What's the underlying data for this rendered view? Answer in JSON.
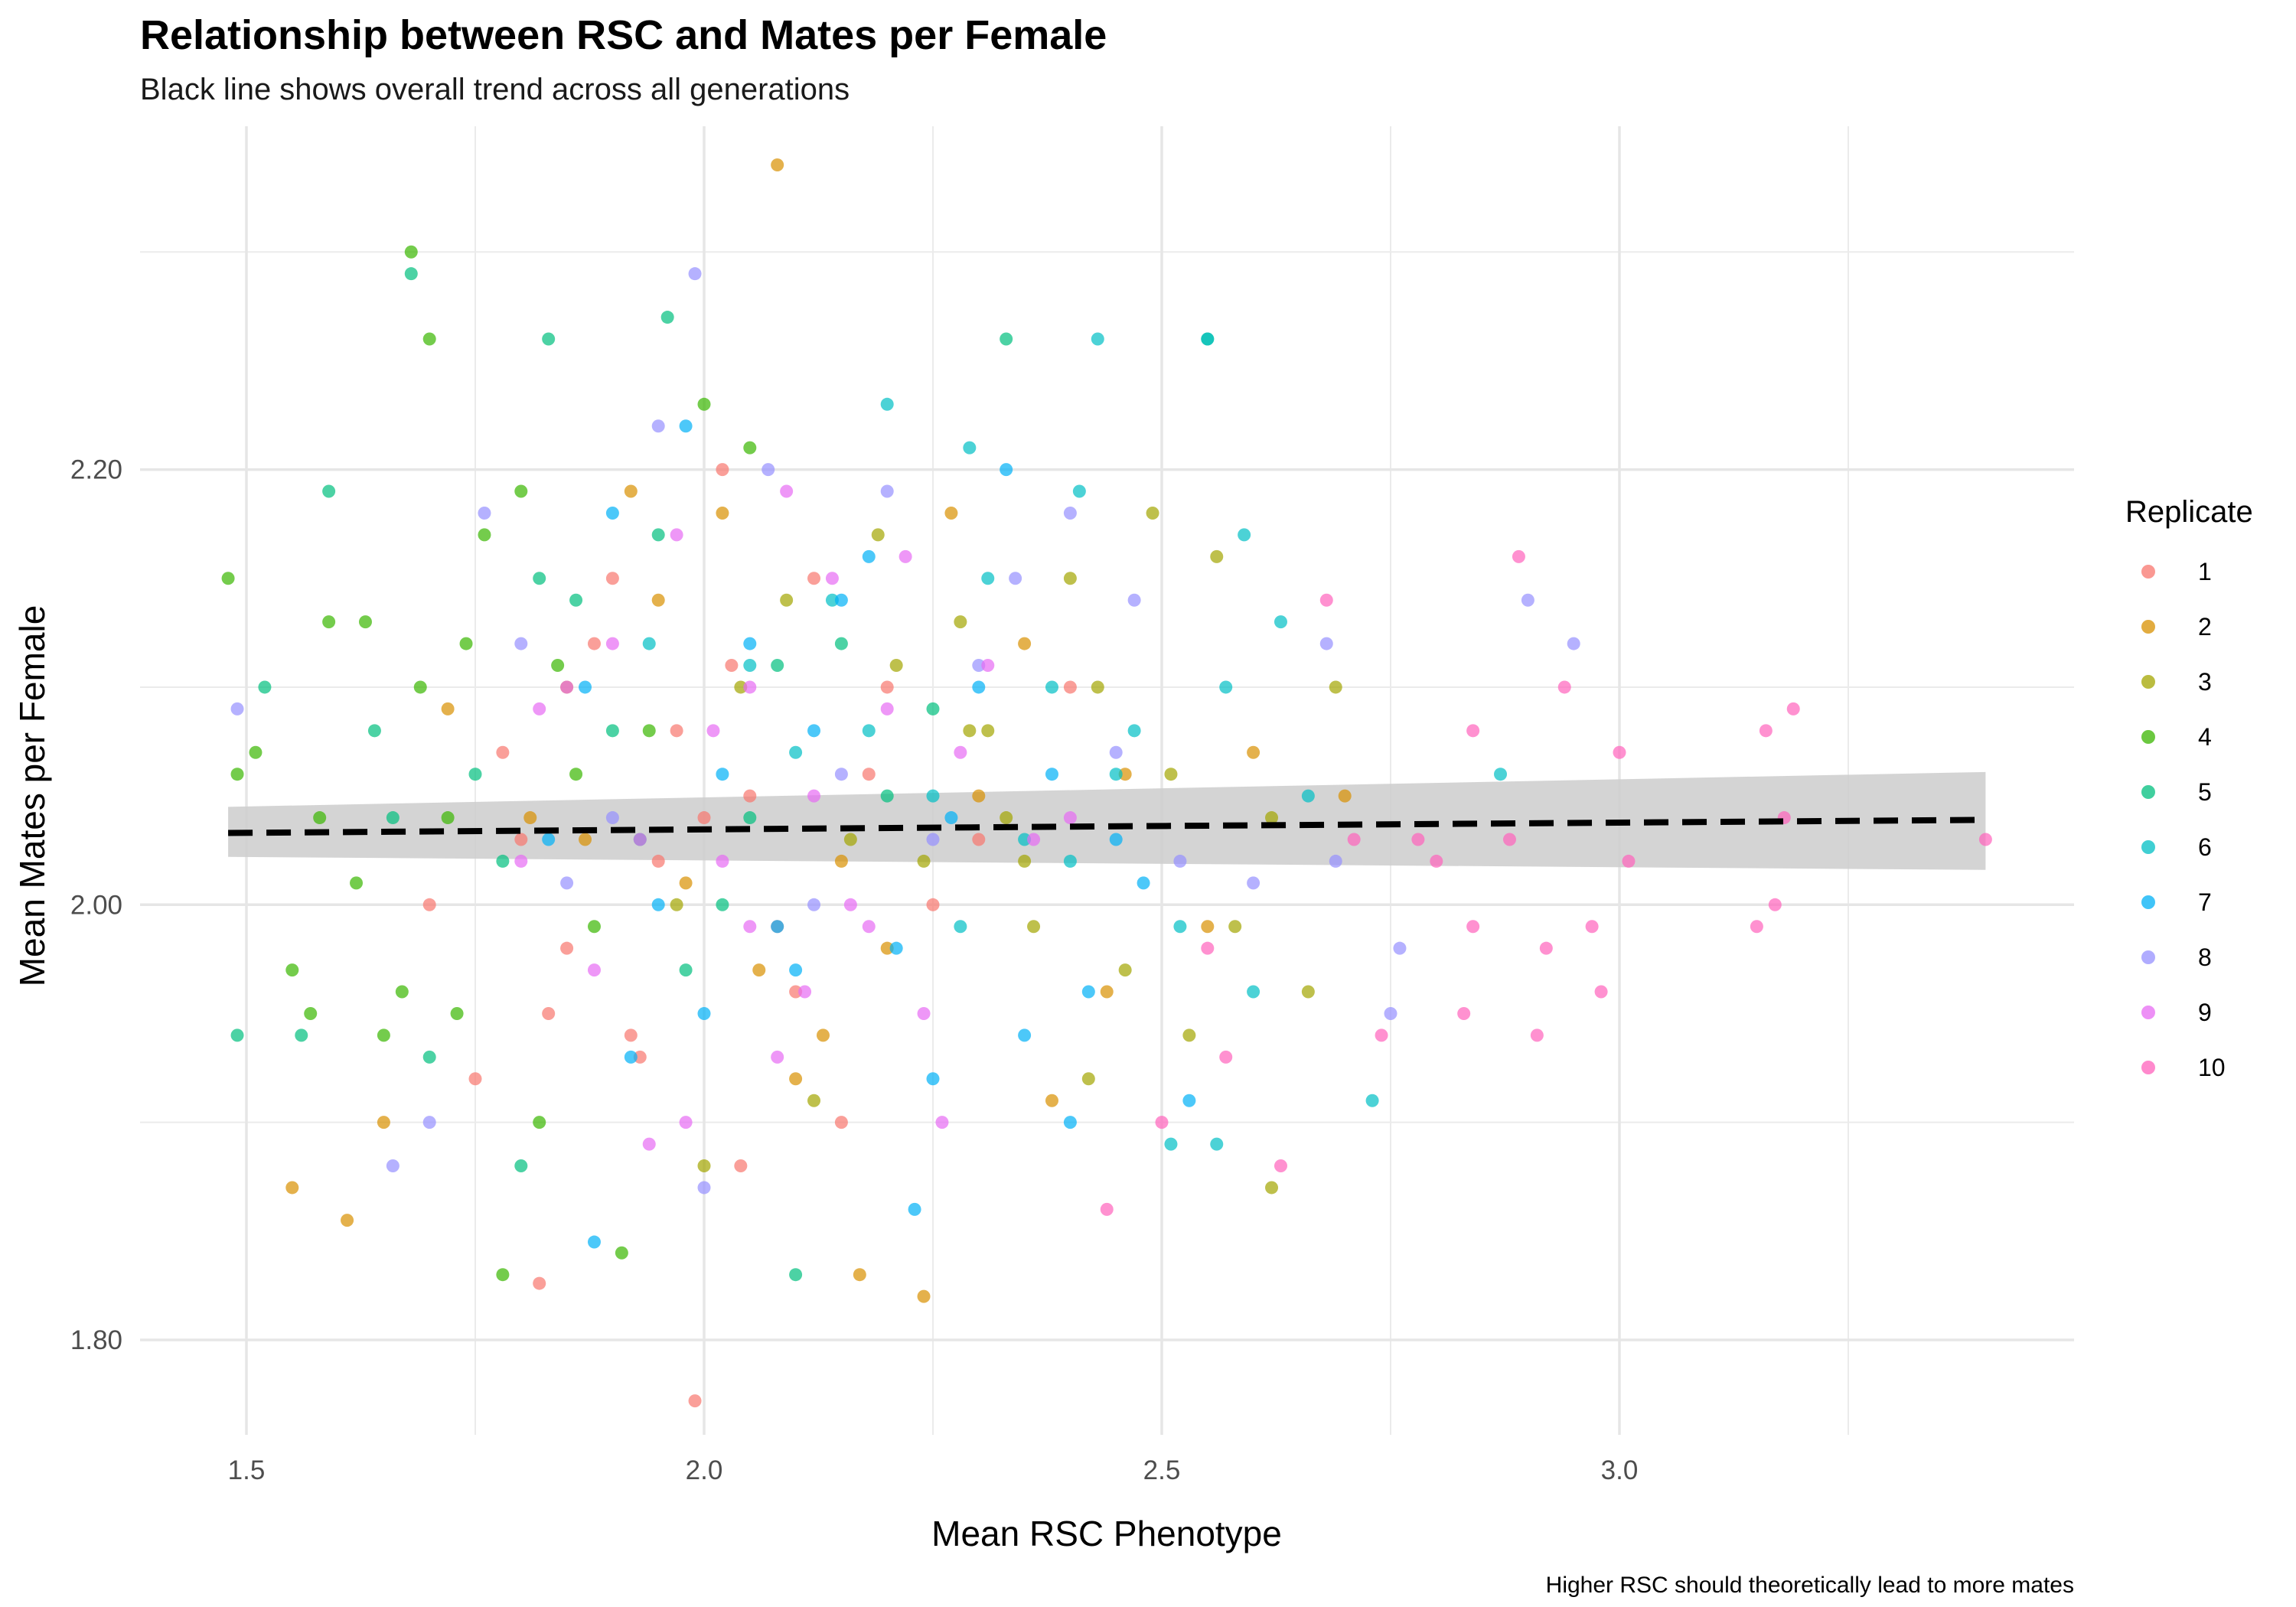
{
  "chart_data": {
    "type": "scatter",
    "title": "Relationship between RSC and Mates per Female",
    "subtitle": "Black line shows overall trend across all generations",
    "xlabel": "Mean RSC Phenotype",
    "ylabel": "Mean Mates per Female",
    "caption": "Higher RSC should theoretically lead to more mates",
    "xlim": [
      1.4,
      3.45
    ],
    "ylim": [
      1.72,
      2.37
    ],
    "x_ticks": [
      "1.5",
      "2.0",
      "2.5",
      "3.0"
    ],
    "y_ticks": [
      "1.80",
      "2.00",
      "2.20"
    ],
    "grid": true,
    "legend": {
      "title": "Replicate",
      "position": "right",
      "entries": [
        "1",
        "2",
        "3",
        "4",
        "5",
        "6",
        "7",
        "8",
        "9",
        "10"
      ]
    },
    "colors": [
      "#F8766D",
      "#D89000",
      "#A3A500",
      "#39B600",
      "#00BF7D",
      "#00BFC4",
      "#00B0F6",
      "#9590FF",
      "#E76BF3",
      "#FF62BC"
    ],
    "trend": {
      "style": "dashed",
      "color": "#000000",
      "ribbon_color": "#CCCCCC",
      "x": [
        1.48,
        3.4
      ],
      "y": [
        2.033,
        2.039
      ],
      "ci_lower": [
        2.022,
        2.016
      ],
      "ci_upper": [
        2.045,
        2.061
      ]
    },
    "series": [
      {
        "name": "1",
        "points": [
          [
            1.82,
            1.826
          ],
          [
            1.99,
            1.772
          ],
          [
            1.9,
            2.15
          ],
          [
            2.03,
            2.11
          ],
          [
            1.95,
            2.02
          ],
          [
            2.1,
            1.96
          ],
          [
            2.18,
            2.06
          ],
          [
            1.85,
            1.98
          ],
          [
            2.0,
            2.04
          ],
          [
            1.78,
            2.07
          ],
          [
            2.25,
            2.0
          ],
          [
            1.93,
            1.93
          ],
          [
            2.05,
            2.05
          ],
          [
            1.88,
            2.12
          ],
          [
            2.15,
            1.9
          ],
          [
            2.3,
            2.03
          ],
          [
            1.75,
            1.92
          ],
          [
            2.08,
            1.99
          ],
          [
            1.97,
            2.08
          ],
          [
            2.12,
            2.15
          ],
          [
            1.83,
            1.95
          ],
          [
            2.2,
            2.1
          ],
          [
            1.92,
            1.94
          ],
          [
            2.04,
            1.88
          ],
          [
            1.7,
            2.0
          ],
          [
            2.4,
            2.1
          ],
          [
            1.8,
            2.03
          ],
          [
            2.02,
            2.2
          ]
        ]
      },
      {
        "name": "2",
        "points": [
          [
            2.08,
            2.34
          ],
          [
            1.55,
            1.87
          ],
          [
            1.61,
            1.855
          ],
          [
            2.24,
            1.82
          ],
          [
            2.17,
            1.83
          ],
          [
            1.87,
            2.03
          ],
          [
            2.02,
            2.18
          ],
          [
            1.92,
            2.19
          ],
          [
            2.2,
            1.98
          ],
          [
            2.35,
            2.12
          ],
          [
            2.46,
            2.06
          ],
          [
            1.81,
            2.04
          ],
          [
            2.27,
            2.18
          ],
          [
            1.65,
            1.9
          ],
          [
            2.06,
            1.97
          ],
          [
            1.98,
            2.01
          ],
          [
            2.13,
            1.94
          ],
          [
            2.44,
            1.96
          ],
          [
            1.72,
            2.09
          ],
          [
            2.3,
            2.05
          ],
          [
            2.6,
            2.07
          ],
          [
            1.85,
            2.1
          ],
          [
            2.15,
            2.02
          ],
          [
            2.7,
            2.05
          ],
          [
            2.1,
            1.92
          ],
          [
            2.55,
            1.99
          ],
          [
            1.95,
            2.14
          ],
          [
            2.38,
            1.91
          ]
        ]
      },
      {
        "name": "3",
        "points": [
          [
            2.49,
            2.18
          ],
          [
            2.56,
            2.16
          ],
          [
            2.62,
            1.87
          ],
          [
            2.69,
            2.1
          ],
          [
            2.09,
            2.14
          ],
          [
            2.31,
            2.08
          ],
          [
            2.19,
            2.17
          ],
          [
            2.43,
            2.1
          ],
          [
            2.36,
            1.99
          ],
          [
            2.51,
            2.06
          ],
          [
            2.24,
            2.02
          ],
          [
            2.28,
            2.13
          ],
          [
            2.0,
            1.88
          ],
          [
            2.46,
            1.97
          ],
          [
            2.12,
            1.91
          ],
          [
            2.35,
            2.02
          ],
          [
            2.58,
            1.99
          ],
          [
            2.42,
            1.92
          ],
          [
            2.16,
            2.03
          ],
          [
            2.29,
            2.08
          ],
          [
            2.04,
            2.1
          ],
          [
            2.66,
            1.96
          ],
          [
            2.53,
            1.94
          ],
          [
            2.21,
            2.11
          ],
          [
            1.97,
            2.0
          ],
          [
            2.33,
            2.04
          ],
          [
            2.4,
            2.15
          ],
          [
            2.62,
            2.04
          ]
        ]
      },
      {
        "name": "4",
        "points": [
          [
            1.48,
            2.15
          ],
          [
            1.49,
            2.06
          ],
          [
            1.51,
            2.07
          ],
          [
            1.59,
            2.13
          ],
          [
            1.68,
            2.3
          ],
          [
            1.7,
            2.26
          ],
          [
            1.55,
            1.97
          ],
          [
            1.65,
            1.94
          ],
          [
            1.74,
            2.12
          ],
          [
            1.78,
            1.83
          ],
          [
            1.91,
            1.84
          ],
          [
            1.88,
            1.99
          ],
          [
            1.63,
            2.13
          ],
          [
            1.8,
            2.19
          ],
          [
            1.72,
            2.04
          ],
          [
            1.84,
            2.11
          ],
          [
            1.67,
            1.96
          ],
          [
            1.62,
            2.01
          ],
          [
            1.76,
            2.17
          ],
          [
            1.94,
            2.08
          ],
          [
            1.58,
            2.04
          ],
          [
            1.82,
            1.9
          ],
          [
            1.69,
            2.1
          ],
          [
            2.0,
            2.23
          ],
          [
            1.73,
            1.95
          ],
          [
            1.86,
            2.06
          ],
          [
            2.05,
            2.21
          ],
          [
            1.57,
            1.95
          ]
        ]
      },
      {
        "name": "5",
        "points": [
          [
            1.59,
            2.19
          ],
          [
            1.68,
            2.29
          ],
          [
            1.83,
            2.26
          ],
          [
            1.96,
            2.27
          ],
          [
            1.49,
            1.94
          ],
          [
            1.52,
            2.1
          ],
          [
            1.8,
            1.88
          ],
          [
            2.1,
            1.83
          ],
          [
            1.75,
            2.06
          ],
          [
            1.9,
            2.08
          ],
          [
            1.64,
            2.08
          ],
          [
            2.05,
            2.04
          ],
          [
            1.86,
            2.14
          ],
          [
            1.95,
            2.17
          ],
          [
            1.7,
            1.93
          ],
          [
            2.02,
            2.0
          ],
          [
            1.78,
            2.02
          ],
          [
            2.15,
            2.12
          ],
          [
            1.93,
            2.03
          ],
          [
            1.66,
            2.04
          ],
          [
            2.08,
            2.11
          ],
          [
            1.82,
            2.15
          ],
          [
            2.2,
            2.05
          ],
          [
            1.98,
            1.97
          ],
          [
            2.55,
            2.26
          ],
          [
            2.33,
            2.26
          ],
          [
            1.56,
            1.94
          ],
          [
            2.25,
            2.09
          ]
        ]
      },
      {
        "name": "6",
        "points": [
          [
            2.43,
            2.26
          ],
          [
            2.55,
            2.26
          ],
          [
            2.2,
            2.23
          ],
          [
            2.29,
            2.21
          ],
          [
            2.41,
            2.19
          ],
          [
            2.59,
            2.17
          ],
          [
            2.05,
            2.11
          ],
          [
            2.31,
            2.15
          ],
          [
            2.47,
            2.08
          ],
          [
            2.63,
            2.13
          ],
          [
            2.73,
            1.91
          ],
          [
            2.87,
            2.06
          ],
          [
            2.51,
            1.89
          ],
          [
            2.56,
            1.89
          ],
          [
            2.18,
            2.08
          ],
          [
            2.38,
            2.1
          ],
          [
            2.25,
            2.05
          ],
          [
            2.14,
            2.14
          ],
          [
            2.6,
            1.96
          ],
          [
            2.35,
            2.03
          ],
          [
            2.45,
            2.06
          ],
          [
            2.1,
            2.07
          ],
          [
            2.66,
            2.05
          ],
          [
            2.28,
            1.99
          ],
          [
            2.52,
            1.99
          ],
          [
            1.94,
            2.12
          ],
          [
            2.4,
            2.02
          ],
          [
            2.57,
            2.1
          ]
        ]
      },
      {
        "name": "7",
        "points": [
          [
            1.88,
            1.845
          ],
          [
            2.23,
            1.86
          ],
          [
            1.9,
            2.18
          ],
          [
            2.05,
            2.12
          ],
          [
            2.33,
            2.2
          ],
          [
            2.42,
            1.96
          ],
          [
            2.08,
            1.99
          ],
          [
            2.15,
            2.14
          ],
          [
            2.3,
            2.1
          ],
          [
            1.95,
            2.0
          ],
          [
            2.38,
            2.06
          ],
          [
            2.0,
            1.95
          ],
          [
            2.27,
            2.04
          ],
          [
            1.83,
            2.03
          ],
          [
            2.12,
            2.08
          ],
          [
            2.21,
            1.98
          ],
          [
            2.45,
            2.03
          ],
          [
            1.98,
            2.22
          ],
          [
            2.18,
            2.16
          ],
          [
            1.92,
            1.93
          ],
          [
            2.35,
            1.94
          ],
          [
            2.02,
            2.06
          ],
          [
            2.4,
            1.9
          ],
          [
            2.1,
            1.97
          ],
          [
            2.25,
            1.92
          ],
          [
            1.87,
            2.1
          ],
          [
            2.48,
            2.01
          ],
          [
            2.53,
            1.91
          ]
        ]
      },
      {
        "name": "8",
        "points": [
          [
            1.99,
            2.29
          ],
          [
            1.95,
            2.22
          ],
          [
            2.07,
            2.2
          ],
          [
            2.2,
            2.19
          ],
          [
            2.4,
            2.18
          ],
          [
            1.49,
            2.09
          ],
          [
            1.66,
            1.88
          ],
          [
            1.7,
            1.9
          ],
          [
            2.0,
            1.87
          ],
          [
            2.9,
            2.14
          ],
          [
            2.95,
            2.12
          ],
          [
            2.76,
            1.98
          ],
          [
            2.75,
            1.95
          ],
          [
            2.68,
            2.12
          ],
          [
            2.47,
            2.14
          ],
          [
            2.25,
            2.03
          ],
          [
            1.76,
            2.18
          ],
          [
            2.34,
            2.15
          ],
          [
            1.8,
            2.12
          ],
          [
            2.6,
            2.01
          ],
          [
            2.15,
            2.06
          ],
          [
            2.52,
            2.02
          ],
          [
            1.9,
            2.04
          ],
          [
            2.3,
            2.11
          ],
          [
            1.85,
            2.01
          ],
          [
            2.12,
            2.0
          ],
          [
            2.45,
            2.07
          ],
          [
            2.69,
            2.02
          ]
        ]
      },
      {
        "name": "9",
        "points": [
          [
            2.09,
            2.19
          ],
          [
            1.97,
            2.17
          ],
          [
            2.14,
            2.15
          ],
          [
            1.9,
            2.12
          ],
          [
            2.22,
            2.16
          ],
          [
            2.05,
            1.99
          ],
          [
            2.18,
            1.99
          ],
          [
            1.85,
            2.1
          ],
          [
            2.28,
            2.07
          ],
          [
            2.01,
            2.08
          ],
          [
            2.12,
            2.05
          ],
          [
            1.93,
            2.03
          ],
          [
            2.36,
            2.03
          ],
          [
            1.88,
            1.97
          ],
          [
            2.24,
            1.95
          ],
          [
            2.05,
            2.1
          ],
          [
            1.98,
            1.9
          ],
          [
            2.16,
            2.0
          ],
          [
            1.82,
            2.09
          ],
          [
            2.31,
            2.11
          ],
          [
            2.08,
            1.93
          ],
          [
            1.94,
            1.89
          ],
          [
            2.4,
            2.04
          ],
          [
            2.2,
            2.09
          ],
          [
            1.8,
            2.02
          ],
          [
            2.26,
            1.9
          ],
          [
            2.11,
            1.96
          ],
          [
            2.02,
            2.02
          ]
        ]
      },
      {
        "name": "10",
        "points": [
          [
            2.89,
            2.16
          ],
          [
            2.94,
            2.1
          ],
          [
            3.0,
            2.07
          ],
          [
            3.16,
            2.08
          ],
          [
            3.19,
            2.09
          ],
          [
            3.4,
            2.03
          ],
          [
            3.18,
            2.04
          ],
          [
            3.01,
            2.02
          ],
          [
            3.17,
            2.0
          ],
          [
            3.15,
            1.99
          ],
          [
            2.97,
            1.99
          ],
          [
            2.92,
            1.98
          ],
          [
            2.98,
            1.96
          ],
          [
            2.91,
            1.94
          ],
          [
            2.83,
            1.95
          ],
          [
            2.74,
            1.94
          ],
          [
            2.84,
            1.99
          ],
          [
            2.84,
            2.08
          ],
          [
            2.88,
            2.03
          ],
          [
            2.8,
            2.02
          ],
          [
            2.68,
            2.14
          ],
          [
            2.71,
            2.03
          ],
          [
            2.63,
            1.88
          ],
          [
            2.5,
            1.9
          ],
          [
            2.57,
            1.93
          ],
          [
            2.44,
            1.86
          ],
          [
            2.55,
            1.98
          ],
          [
            2.78,
            2.03
          ]
        ]
      }
    ]
  }
}
